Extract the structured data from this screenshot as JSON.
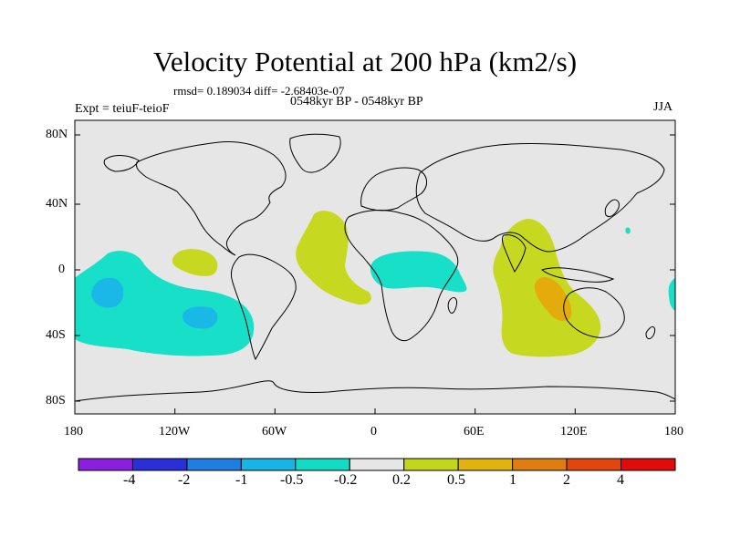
{
  "title": "Velocity Potential at 200 hPa (km2/s)",
  "stats": "rmsd= 0.189034 diff= -2.68403e-07",
  "experiment": "Expt = teiuF-teioF",
  "period": "0548kyr BP - 0548kyr BP",
  "season": "JJA",
  "lat_ticks": [
    "80N",
    "40N",
    "0",
    "40S",
    "80S"
  ],
  "lon_ticks": [
    "180",
    "120W",
    "60W",
    "0",
    "60E",
    "120E",
    "180"
  ],
  "colorbar": {
    "labels": [
      "-4",
      "-2",
      "-1",
      "-0.5",
      "-0.2",
      "0.2",
      "0.5",
      "1",
      "2",
      "4"
    ],
    "colors": [
      "#8a1fe0",
      "#2a2fd8",
      "#1f7ee0",
      "#17b4e6",
      "#12dcc4",
      "#e6e6e6",
      "#c2d61c",
      "#e0b40c",
      "#e07d10",
      "#e0460e",
      "#e00c0c"
    ]
  },
  "colors": {
    "ocean": "#e6e6e6",
    "neg_light": "#17dfc8",
    "neg_mid": "#1ab8e6",
    "pos_light": "#c6d820",
    "pos_mid": "#e3ac0c"
  }
}
